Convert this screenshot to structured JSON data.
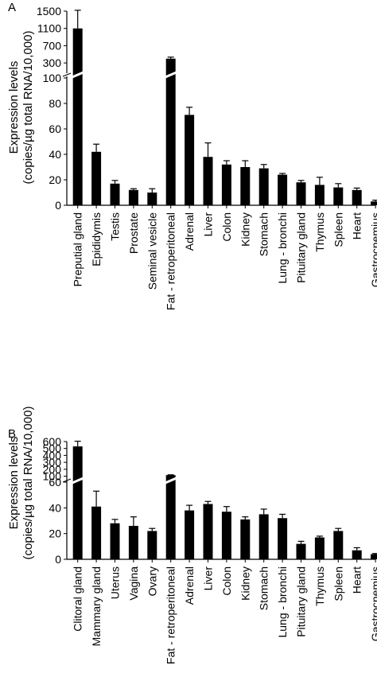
{
  "chart_data": [
    {
      "type": "bar",
      "panel_label": "A",
      "ylabel_lines": [
        "Expression levels",
        "(copies/µg total RNA/10,000)"
      ],
      "categories": [
        "Preputial gland",
        "Epididymis",
        "Testis",
        "Prostate",
        "Seminal vesicle",
        "Fat - retroperitoneal",
        "Adrenal",
        "Liver",
        "Colon",
        "Kidney",
        "Stomach",
        "Lung - bronchi",
        "Pituitary gland",
        "Thymus",
        "Spleen",
        "Heart",
        "Gastrocnemius"
      ],
      "values": [
        1100,
        42,
        17,
        12,
        10,
        400,
        71,
        38,
        32,
        30,
        29,
        24,
        18,
        16,
        14,
        12,
        3
      ],
      "errors": [
        420,
        6,
        2.5,
        1,
        3,
        35,
        6,
        11,
        3,
        5,
        3,
        1,
        1.5,
        6,
        3,
        1.5,
        1
      ],
      "axis_breaks": true,
      "lower_segment": {
        "ylim": [
          0,
          100
        ],
        "ticks": [
          0,
          20,
          40,
          60,
          80,
          100
        ],
        "tick_labels": [
          "0",
          "20",
          "40",
          "60",
          "80",
          "100"
        ]
      },
      "upper_segment": {
        "ylim": [
          100,
          1500
        ],
        "ticks": [
          300,
          700,
          1100,
          1500
        ],
        "tick_labels": [
          "300",
          "700",
          "1100",
          "1500"
        ]
      },
      "grid": false
    },
    {
      "type": "bar",
      "panel_label": "B",
      "ylabel_lines": [
        "Expression levels",
        "(copies/µg total RNA/10,000)"
      ],
      "categories": [
        "Clitoral gland",
        "Mammary gland",
        "Uterus",
        "Vagina",
        "Ovary",
        "Fat - retroperitoneal",
        "Adrenal",
        "Liver",
        "Colon",
        "Kidney",
        "Stomach",
        "Lung - bronchi",
        "Pituitary gland",
        "Thymus",
        "Spleen",
        "Heart",
        "Gastrocnemius"
      ],
      "values": [
        530,
        41,
        28,
        26,
        22,
        115,
        38,
        43,
        37,
        31,
        35,
        32,
        12,
        17,
        22,
        7,
        4
      ],
      "errors": [
        75,
        12,
        3,
        7,
        2,
        5,
        4,
        2,
        4,
        2,
        4,
        3,
        2,
        1,
        2,
        2,
        0.5
      ],
      "axis_breaks": true,
      "lower_segment": {
        "ylim": [
          0,
          60
        ],
        "ticks": [
          0,
          20,
          40,
          60
        ],
        "tick_labels": [
          "0",
          "20",
          "40",
          "60"
        ]
      },
      "upper_segment": {
        "ylim": [
          60,
          600
        ],
        "ticks": [
          100,
          200,
          300,
          400,
          500,
          600
        ],
        "tick_labels": [
          "100",
          "200",
          "300",
          "400",
          "500",
          "600"
        ]
      },
      "grid": false
    }
  ]
}
